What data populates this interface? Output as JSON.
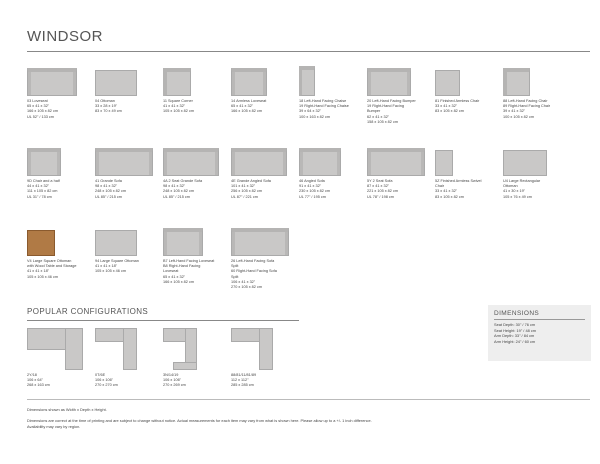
{
  "title": "WINDSOR",
  "items": [
    {
      "lines": [
        "03 Loveseat",
        "65 x 41 x 32\"",
        "166 x 105 x 82 cm",
        "UL 52\" / 133 cm"
      ],
      "shape": "sofa",
      "w": 50
    },
    {
      "lines": [
        "04 Ottoman",
        "33 x 28 x 19\"",
        "83 x 70 x 49 cm"
      ],
      "shape": "plain",
      "w": 42
    },
    {
      "lines": [
        "11 Square Corner",
        "41 x 41 x 32\"",
        "105 x 105 x 82 cm"
      ],
      "shape": "corner",
      "w": 28
    },
    {
      "lines": [
        "14 Armless Loveseat",
        "65 x 41 x 32\"",
        "166 x 105 x 82 cm"
      ],
      "shape": "sofa",
      "w": 36
    },
    {
      "lines": [
        "18 Left-Hand Facing Chaise",
        "19 Right-Hand Facing Chaise",
        "39 x 64 x 32\"",
        "100 x 163 x 82 cm"
      ],
      "shape": "chaise",
      "w": 16
    },
    {
      "lines": [
        "20 Left-Hand Facing Bumper",
        "19 Right-Hand Facing",
        "Bumper",
        "62 x 41 x 32\"",
        "158 x 105 x 82 cm"
      ],
      "shape": "sofa",
      "w": 44
    },
    {
      "lines": [
        "81 Finished Armless Chair",
        "33 x 41 x 32\"",
        "83 x 105 x 82 cm"
      ],
      "shape": "plain",
      "w": 25
    },
    {
      "lines": [
        "88 Left-Hand Facing Chair",
        "89 Right-Hand Facing Chair",
        "39 x 41 x 32\"",
        "100 x 105 x 82 cm"
      ],
      "shape": "corner",
      "w": 27
    },
    {
      "lines": [
        "9D Chair and a half",
        "44 x 41 x 32\"",
        "111 x 105 x 82 cm",
        "UL 31\" / 78 cm"
      ],
      "shape": "sofa",
      "w": 34
    },
    {
      "lines": [
        "41 Grande Sofa",
        "98 x 41 x 32\"",
        "248 x 105 x 82 cm",
        "UL 85\" / 215 cm"
      ],
      "shape": "sofa",
      "w": 58
    },
    {
      "lines": [
        "4A 2 Seat Grande Sofa",
        "98 x 41 x 32\"",
        "248 x 105 x 82 cm",
        "UL 85\" / 215 cm"
      ],
      "shape": "sofa",
      "w": 56
    },
    {
      "lines": [
        "4E Grande Angled Sofa",
        "101 x 41 x 32\"",
        "256 x 105 x 82 cm",
        "UL 87\" / 221 cm"
      ],
      "shape": "sofa",
      "w": 56
    },
    {
      "lines": [
        "46 Angled Sofa",
        "91 x 41 x 32\"",
        "230 x 105 x 82 cm",
        "UL 77\" / 195 cm"
      ],
      "shape": "sofa",
      "w": 42
    },
    {
      "lines": [
        "5Y 2 Seat Sofa",
        "87 x 41 x 32\"",
        "221 x 105 x 82 cm",
        "UL 78\" / 198 cm"
      ],
      "shape": "sofa",
      "w": 58
    },
    {
      "lines": [
        "5Z Finished Armless Swivel",
        "Chair",
        "33 x 41 x 32\"",
        "83 x 105 x 82 cm"
      ],
      "shape": "plain",
      "w": 18
    },
    {
      "lines": [
        "U4 Large Rectangular",
        "Ottoman",
        "41 x 30 x 19\"",
        "105 x 76 x 49 cm"
      ],
      "shape": "plain",
      "w": 44
    },
    {
      "lines": [
        "V4 Large Square Ottoman",
        "with Wood Table and Storage",
        "41 x 41 x 18\"",
        "105 x 105 x 46 cm"
      ],
      "shape": "wood",
      "w": 28
    },
    {
      "lines": [
        "94 Large Square Ottoman",
        "41 x 41 x 18\"",
        "105 x 105 x 46 cm"
      ],
      "shape": "plain",
      "w": 42
    },
    {
      "lines": [
        "B7 Left-Hand Facing Loveseat",
        "B8 Right-Hand Facing",
        "Loveseat",
        "65 x 41 x 32\"",
        "166 x 105 x 82 cm"
      ],
      "shape": "sofa",
      "w": 40
    },
    {
      "lines": [
        "26 Left-Hand Facing Sofa",
        "Split",
        "60 Right-Hand Facing Sofa",
        "Split",
        "106 x 41 x 32\"",
        "270 x 105 x 82 cm"
      ],
      "shape": "sofa",
      "w": 58
    }
  ],
  "popular": {
    "title": "POPULAR CONFIGURATIONS",
    "configs": [
      {
        "lines": [
          "2Y/18",
          "106 x 64\"",
          "268 x 163 cm"
        ]
      },
      {
        "lines": [
          "0T/6E",
          "106 x 106\"",
          "270 x 270 cm"
        ]
      },
      {
        "lines": [
          "3N/14/19",
          "106 x 106\"",
          "270 x 269 cm"
        ]
      },
      {
        "lines": [
          "88/81/11/81/89",
          "112 x 112\"",
          "285 x 285 cm"
        ]
      }
    ]
  },
  "dimensions": {
    "title": "DIMENSIONS",
    "lines": [
      "Seat Depth: 30\" / 76 cm",
      "Seat Height: 19\" / 48 cm",
      "Arm Depth: 33\" / 84 cm",
      "Arm Height: 24\" / 60 cm"
    ]
  },
  "footer": {
    "note": "Dimensions shown as Width x Depth x Height.",
    "disclaimer": "Dimensions are correct at the time of printing and are subject to change without notice. Actual measurements for each item may vary from what is shown here. Please allow up to a +/- 1 inch difference.",
    "availability": "Availability may vary by region."
  }
}
